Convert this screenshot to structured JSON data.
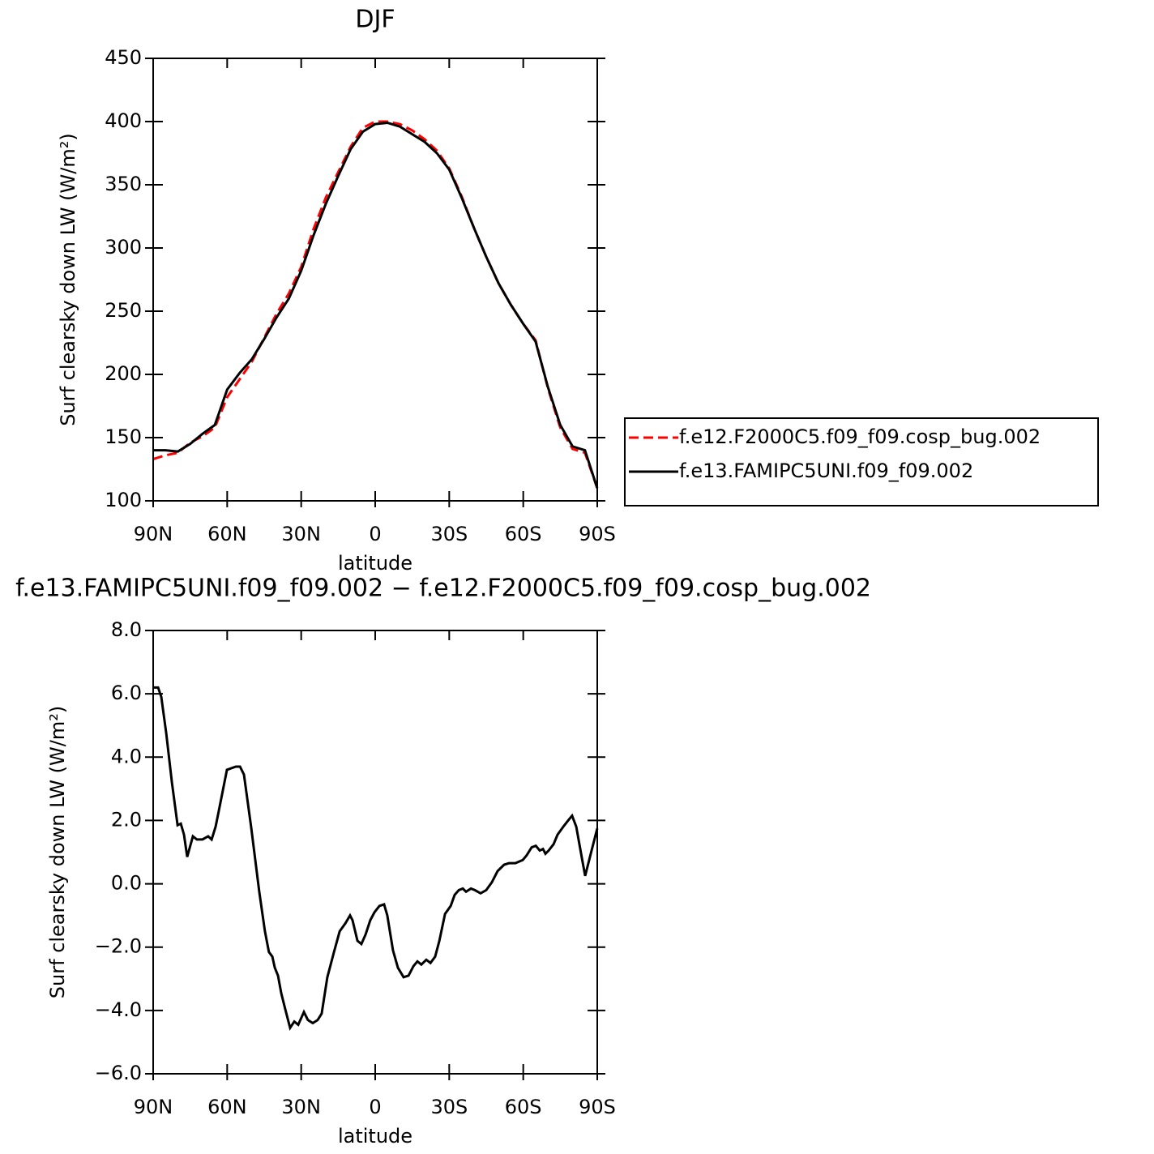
{
  "chart_data": [
    {
      "type": "line",
      "title": "DJF",
      "xlabel": "latitude",
      "ylabel": "Surf clearsky down LW (W/m²)",
      "x": [
        90,
        85,
        80,
        75,
        70,
        65,
        60,
        55,
        50,
        45,
        40,
        35,
        30,
        25,
        20,
        15,
        10,
        5,
        0,
        -5,
        -10,
        -15,
        -20,
        -25,
        -30,
        -35,
        -40,
        -45,
        -50,
        -55,
        -60,
        -65,
        -70,
        -75,
        -80,
        -85,
        -90
      ],
      "series": [
        {
          "name": "f.e12.F2000C5.f09_f09.cosp_bug.002",
          "color": "#ff0000",
          "linestyle": "dashed",
          "values": [
            133,
            136,
            138,
            146,
            151,
            158,
            182,
            196,
            210,
            229,
            248,
            264,
            285,
            315,
            340,
            360,
            380,
            395,
            400,
            400,
            398,
            393,
            386,
            377,
            363,
            341,
            316,
            293,
            272,
            255,
            240,
            227,
            189,
            158,
            141,
            138,
            110
          ]
        },
        {
          "name": "f.e13.FAMIPC5UNI.f09_f09.002",
          "color": "#000000",
          "linestyle": "solid",
          "values": [
            140,
            140,
            139,
            145,
            153,
            160,
            188,
            201,
            212,
            228,
            245,
            260,
            282,
            310,
            335,
            357,
            378,
            392,
            398,
            399,
            396,
            390,
            384,
            375,
            362,
            340,
            316,
            293,
            272,
            255,
            240,
            226,
            190,
            160,
            143,
            140,
            110
          ]
        }
      ],
      "xlim": [
        90,
        -90
      ],
      "xticks": [
        {
          "value": 90,
          "label": "90N"
        },
        {
          "value": 60,
          "label": "60N"
        },
        {
          "value": 30,
          "label": "30N"
        },
        0,
        {
          "value": -30,
          "label": "30S"
        },
        {
          "value": -60,
          "label": "60S"
        },
        {
          "value": -90,
          "label": "90S"
        }
      ],
      "ylim": [
        100,
        450
      ],
      "yticks": [
        100,
        150,
        200,
        250,
        300,
        350,
        400,
        450
      ],
      "legend": "right"
    },
    {
      "type": "line",
      "title": "f.e13.FAMIPC5UNI.f09_f09.002 − f.e12.F2000C5.f09_f09.cosp_bug.002",
      "xlabel": "latitude",
      "ylabel": "Surf clearsky down LW (W/m²)",
      "x": [
        89.7,
        88,
        86.7,
        84.7,
        82.4,
        80.1,
        78.8,
        77.5,
        76.2,
        73.9,
        72.3,
        70,
        67.7,
        66.3,
        64.7,
        63.4,
        60.1,
        56.5,
        54.8,
        53.2,
        50.3,
        47,
        44.7,
        43.1,
        41.7,
        40.7,
        39.4,
        38.1,
        36.5,
        34.5,
        32.8,
        31.2,
        28.9,
        27.3,
        25.3,
        23.3,
        21.7,
        19.4,
        16.7,
        14.4,
        12.1,
        10.2,
        9.2,
        7.2,
        5.6,
        3.9,
        2,
        0.3,
        -1.7,
        -3.6,
        -4.9,
        -7.2,
        -9.2,
        -11.5,
        -13.5,
        -15.5,
        -17.1,
        -18.7,
        -20.7,
        -22.4,
        -24.3,
        -26,
        -28.3,
        -30.6,
        -32.2,
        -33.9,
        -35.5,
        -36.8,
        -38.8,
        -40.4,
        -42.7,
        -45,
        -47.3,
        -49.6,
        -52.2,
        -54.2,
        -56.8,
        -59.8,
        -61.4,
        -63.4,
        -65.1,
        -66.7,
        -68,
        -69,
        -70.3,
        -72.3,
        -73.9,
        -76.2,
        -78.2,
        -79.8,
        -81.5,
        -83.8,
        -85.1,
        -87.7,
        -90
      ],
      "values": [
        6.2,
        6.2,
        5.9,
        4.75,
        3.2,
        1.85,
        1.9,
        1.55,
        0.85,
        1.5,
        1.4,
        1.4,
        1.5,
        1.4,
        1.8,
        2.3,
        3.6,
        3.7,
        3.7,
        3.45,
        1.8,
        -0.25,
        -1.5,
        -2.15,
        -2.3,
        -2.65,
        -2.9,
        -3.45,
        -3.95,
        -4.55,
        -4.35,
        -4.45,
        -4.05,
        -4.3,
        -4.4,
        -4.3,
        -4.1,
        -2.95,
        -2.15,
        -1.5,
        -1.25,
        -1.0,
        -1.15,
        -1.8,
        -1.9,
        -1.6,
        -1.15,
        -0.9,
        -0.7,
        -0.65,
        -1.0,
        -2.1,
        -2.65,
        -2.95,
        -2.9,
        -2.6,
        -2.45,
        -2.55,
        -2.4,
        -2.5,
        -2.3,
        -1.8,
        -0.95,
        -0.7,
        -0.35,
        -0.2,
        -0.15,
        -0.25,
        -0.15,
        -0.2,
        -0.3,
        -0.2,
        0.05,
        0.4,
        0.6,
        0.65,
        0.65,
        0.75,
        0.9,
        1.15,
        1.2,
        1.05,
        1.1,
        0.95,
        1.05,
        1.25,
        1.55,
        1.8,
        2.0,
        2.15,
        1.8,
        0.8,
        0.25,
        1.05,
        1.75
      ],
      "color": "#000000",
      "xlim": [
        90,
        -90
      ],
      "xticks": [
        {
          "value": 90,
          "label": "90N"
        },
        {
          "value": 60,
          "label": "60N"
        },
        {
          "value": 30,
          "label": "30N"
        },
        0,
        {
          "value": -30,
          "label": "30S"
        },
        {
          "value": -60,
          "label": "60S"
        },
        {
          "value": -90,
          "label": "90S"
        }
      ],
      "ylim": [
        -6,
        8
      ],
      "yticks": [
        {
          "value": -6,
          "label": "−6.0"
        },
        {
          "value": -4,
          "label": "−4.0"
        },
        {
          "value": -2,
          "label": "−2.0"
        },
        {
          "value": 0,
          "label": "0.0"
        },
        {
          "value": 2,
          "label": "2.0"
        },
        {
          "value": 4,
          "label": "4.0"
        },
        {
          "value": 6,
          "label": "6.0"
        },
        {
          "value": 8,
          "label": "8.0"
        }
      ]
    }
  ]
}
